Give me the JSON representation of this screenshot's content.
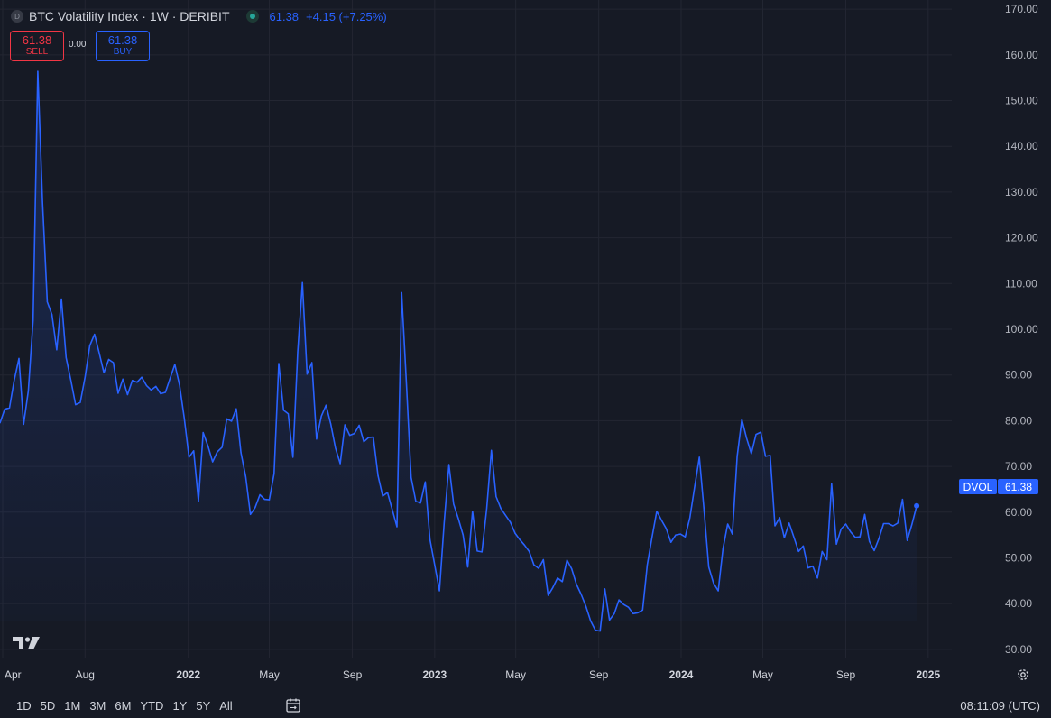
{
  "header": {
    "symbol_icon": "D",
    "title": "BTC Volatility Index · 1W · DERIBIT",
    "status_icon": "market-open-dot-icon",
    "last_value": "61.38",
    "change": "+4.15 (+7.25%)"
  },
  "trade": {
    "sell_value": "61.38",
    "sell_label": "SELL",
    "spread": "0.00",
    "buy_value": "61.38",
    "buy_label": "BUY"
  },
  "price_label": {
    "symbol": "DVOL",
    "value": "61.38"
  },
  "bottombar": {
    "ranges": [
      "1D",
      "5D",
      "1M",
      "3M",
      "6M",
      "YTD",
      "1Y",
      "5Y",
      "All"
    ],
    "calendar_icon": "calendar-range-icon",
    "time": "08:11:09 (UTC)"
  },
  "colors": {
    "bg": "#161a25",
    "line": "#2962ff",
    "grid": "#232632",
    "text": "#d1d4dc",
    "sell": "#f23645"
  },
  "chart_data": {
    "type": "area",
    "title": "BTC Volatility Index · 1W · DERIBIT",
    "xlabel": "",
    "ylabel": "",
    "ylim": [
      28,
      172
    ],
    "yticks": [
      30,
      40,
      50,
      60,
      70,
      80,
      90,
      100,
      110,
      120,
      130,
      140,
      150,
      160,
      170
    ],
    "ytick_labels": [
      "30.00",
      "40.00",
      "50.00",
      "60.00",
      "70.00",
      "80.00",
      "90.00",
      "100.00",
      "110.00",
      "120.00",
      "130.00",
      "140.00",
      "150.00",
      "160.00",
      "170.00"
    ],
    "x_start": "2021-03-28",
    "x_end": "2025-02-05",
    "xticks": [
      {
        "date": "2021-04-01",
        "label": "Apr",
        "bold": false
      },
      {
        "date": "2021-08-01",
        "label": "Aug",
        "bold": false
      },
      {
        "date": "2022-01-01",
        "label": "2022",
        "bold": true
      },
      {
        "date": "2022-05-01",
        "label": "May",
        "bold": false
      },
      {
        "date": "2022-09-01",
        "label": "Sep",
        "bold": false
      },
      {
        "date": "2023-01-01",
        "label": "2023",
        "bold": true
      },
      {
        "date": "2023-05-01",
        "label": "May",
        "bold": false
      },
      {
        "date": "2023-09-01",
        "label": "Sep",
        "bold": false
      },
      {
        "date": "2024-01-01",
        "label": "2024",
        "bold": true
      },
      {
        "date": "2024-05-01",
        "label": "May",
        "bold": false
      },
      {
        "date": "2024-09-01",
        "label": "Sep",
        "bold": false
      },
      {
        "date": "2025-01-01",
        "label": "2025",
        "bold": true
      }
    ],
    "grid": true,
    "series": [
      {
        "name": "DVOL",
        "points": [
          [
            "2021-03-28",
            79.5
          ],
          [
            "2021-04-04",
            82.5
          ],
          [
            "2021-04-11",
            82.8
          ],
          [
            "2021-04-18",
            88.8
          ],
          [
            "2021-04-25",
            93.6
          ],
          [
            "2021-05-02",
            79.2
          ],
          [
            "2021-05-09",
            86.5
          ],
          [
            "2021-05-16",
            102.0
          ],
          [
            "2021-05-23",
            156.4
          ],
          [
            "2021-05-30",
            128.0
          ],
          [
            "2021-06-06",
            106.0
          ],
          [
            "2021-06-13",
            103.2
          ],
          [
            "2021-06-20",
            95.5
          ],
          [
            "2021-06-27",
            106.6
          ],
          [
            "2021-07-04",
            93.8
          ],
          [
            "2021-07-11",
            88.8
          ],
          [
            "2021-07-18",
            83.5
          ],
          [
            "2021-07-25",
            84.0
          ],
          [
            "2021-08-01",
            89.5
          ],
          [
            "2021-08-08",
            96.4
          ],
          [
            "2021-08-15",
            98.9
          ],
          [
            "2021-08-22",
            94.8
          ],
          [
            "2021-08-29",
            90.5
          ],
          [
            "2021-09-05",
            93.4
          ],
          [
            "2021-09-12",
            92.7
          ],
          [
            "2021-09-19",
            86.0
          ],
          [
            "2021-09-26",
            89.1
          ],
          [
            "2021-10-03",
            85.7
          ],
          [
            "2021-10-10",
            88.8
          ],
          [
            "2021-10-17",
            88.4
          ],
          [
            "2021-10-24",
            89.5
          ],
          [
            "2021-10-31",
            87.7
          ],
          [
            "2021-11-07",
            86.7
          ],
          [
            "2021-11-14",
            87.5
          ],
          [
            "2021-11-21",
            85.9
          ],
          [
            "2021-11-28",
            86.2
          ],
          [
            "2021-12-05",
            89.3
          ],
          [
            "2021-12-12",
            92.3
          ],
          [
            "2021-12-19",
            87.8
          ],
          [
            "2021-12-26",
            80.5
          ],
          [
            "2022-01-02",
            72.0
          ],
          [
            "2022-01-09",
            73.4
          ],
          [
            "2022-01-16",
            62.4
          ],
          [
            "2022-01-23",
            77.4
          ],
          [
            "2022-01-30",
            74.5
          ],
          [
            "2022-02-06",
            71.0
          ],
          [
            "2022-02-13",
            73.2
          ],
          [
            "2022-02-20",
            74.2
          ],
          [
            "2022-02-27",
            80.4
          ],
          [
            "2022-03-06",
            79.9
          ],
          [
            "2022-03-13",
            82.6
          ],
          [
            "2022-03-20",
            73.0
          ],
          [
            "2022-03-27",
            67.7
          ],
          [
            "2022-04-03",
            59.5
          ],
          [
            "2022-04-10",
            61.0
          ],
          [
            "2022-04-17",
            63.8
          ],
          [
            "2022-04-24",
            62.8
          ],
          [
            "2022-05-01",
            62.7
          ],
          [
            "2022-05-08",
            68.4
          ],
          [
            "2022-05-15",
            92.5
          ],
          [
            "2022-05-22",
            82.3
          ],
          [
            "2022-05-29",
            81.5
          ],
          [
            "2022-06-05",
            72.0
          ],
          [
            "2022-06-12",
            95.0
          ],
          [
            "2022-06-19",
            110.2
          ],
          [
            "2022-06-26",
            90.2
          ],
          [
            "2022-07-03",
            92.7
          ],
          [
            "2022-07-10",
            76.0
          ],
          [
            "2022-07-17",
            81.0
          ],
          [
            "2022-07-24",
            83.4
          ],
          [
            "2022-07-31",
            79.3
          ],
          [
            "2022-08-07",
            74.0
          ],
          [
            "2022-08-14",
            70.6
          ],
          [
            "2022-08-21",
            79.1
          ],
          [
            "2022-08-28",
            76.8
          ],
          [
            "2022-09-04",
            77.2
          ],
          [
            "2022-09-11",
            79.0
          ],
          [
            "2022-09-18",
            75.4
          ],
          [
            "2022-09-25",
            76.3
          ],
          [
            "2022-10-02",
            76.4
          ],
          [
            "2022-10-09",
            68.0
          ],
          [
            "2022-10-16",
            63.5
          ],
          [
            "2022-10-23",
            64.3
          ],
          [
            "2022-10-30",
            60.6
          ],
          [
            "2022-11-06",
            56.8
          ],
          [
            "2022-11-13",
            108.0
          ],
          [
            "2022-11-20",
            88.5
          ],
          [
            "2022-11-27",
            67.6
          ],
          [
            "2022-12-04",
            62.4
          ],
          [
            "2022-12-11",
            62.0
          ],
          [
            "2022-12-18",
            66.6
          ],
          [
            "2022-12-25",
            54.0
          ],
          [
            "2023-01-01",
            48.4
          ],
          [
            "2023-01-08",
            42.8
          ],
          [
            "2023-01-15",
            57.6
          ],
          [
            "2023-01-22",
            70.4
          ],
          [
            "2023-01-29",
            61.8
          ],
          [
            "2023-02-05",
            58.6
          ],
          [
            "2023-02-12",
            55.0
          ],
          [
            "2023-02-19",
            48.0
          ],
          [
            "2023-02-26",
            60.2
          ],
          [
            "2023-03-05",
            51.5
          ],
          [
            "2023-03-12",
            51.3
          ],
          [
            "2023-03-19",
            60.8
          ],
          [
            "2023-03-26",
            73.5
          ],
          [
            "2023-04-02",
            63.4
          ],
          [
            "2023-04-09",
            60.8
          ],
          [
            "2023-04-16",
            59.3
          ],
          [
            "2023-04-23",
            57.8
          ],
          [
            "2023-04-30",
            55.4
          ],
          [
            "2023-05-07",
            54.0
          ],
          [
            "2023-05-14",
            52.8
          ],
          [
            "2023-05-21",
            51.4
          ],
          [
            "2023-05-28",
            48.5
          ],
          [
            "2023-06-04",
            47.7
          ],
          [
            "2023-06-11",
            49.6
          ],
          [
            "2023-06-18",
            41.8
          ],
          [
            "2023-06-25",
            43.5
          ],
          [
            "2023-07-02",
            45.6
          ],
          [
            "2023-07-09",
            44.8
          ],
          [
            "2023-07-16",
            49.5
          ],
          [
            "2023-07-23",
            47.6
          ],
          [
            "2023-07-30",
            44.2
          ],
          [
            "2023-08-06",
            42.0
          ],
          [
            "2023-08-13",
            39.4
          ],
          [
            "2023-08-20",
            36.2
          ],
          [
            "2023-08-27",
            34.2
          ],
          [
            "2023-09-03",
            34.0
          ],
          [
            "2023-09-10",
            43.2
          ],
          [
            "2023-09-17",
            36.4
          ],
          [
            "2023-09-24",
            37.8
          ],
          [
            "2023-10-01",
            40.8
          ],
          [
            "2023-10-08",
            39.8
          ],
          [
            "2023-10-15",
            39.2
          ],
          [
            "2023-10-22",
            37.8
          ],
          [
            "2023-10-29",
            38.0
          ],
          [
            "2023-11-05",
            38.6
          ],
          [
            "2023-11-12",
            48.5
          ],
          [
            "2023-11-19",
            54.6
          ],
          [
            "2023-11-26",
            60.2
          ],
          [
            "2023-12-03",
            58.2
          ],
          [
            "2023-12-10",
            56.4
          ],
          [
            "2023-12-17",
            53.4
          ],
          [
            "2023-12-24",
            55.0
          ],
          [
            "2023-12-31",
            55.2
          ],
          [
            "2024-01-07",
            54.6
          ],
          [
            "2024-01-14",
            58.8
          ],
          [
            "2024-01-21",
            65.4
          ],
          [
            "2024-01-28",
            72.0
          ],
          [
            "2024-02-04",
            60.5
          ],
          [
            "2024-02-11",
            48.0
          ],
          [
            "2024-02-18",
            44.5
          ],
          [
            "2024-02-25",
            42.8
          ],
          [
            "2024-03-03",
            52.0
          ],
          [
            "2024-03-10",
            57.4
          ],
          [
            "2024-03-17",
            55.2
          ],
          [
            "2024-03-24",
            72.2
          ],
          [
            "2024-03-31",
            80.3
          ],
          [
            "2024-04-07",
            76.2
          ],
          [
            "2024-04-14",
            72.8
          ],
          [
            "2024-04-21",
            77.0
          ],
          [
            "2024-04-28",
            77.5
          ],
          [
            "2024-05-05",
            72.2
          ],
          [
            "2024-05-12",
            72.4
          ],
          [
            "2024-05-19",
            57.0
          ],
          [
            "2024-05-26",
            58.8
          ],
          [
            "2024-06-02",
            54.4
          ],
          [
            "2024-06-09",
            57.6
          ],
          [
            "2024-06-16",
            54.6
          ],
          [
            "2024-06-23",
            51.4
          ],
          [
            "2024-06-30",
            52.6
          ],
          [
            "2024-07-07",
            47.8
          ],
          [
            "2024-07-14",
            48.2
          ],
          [
            "2024-07-21",
            45.6
          ],
          [
            "2024-07-28",
            51.4
          ],
          [
            "2024-08-04",
            49.6
          ],
          [
            "2024-08-11",
            66.2
          ],
          [
            "2024-08-18",
            53.0
          ],
          [
            "2024-08-25",
            56.3
          ],
          [
            "2024-09-01",
            57.4
          ],
          [
            "2024-09-08",
            55.7
          ],
          [
            "2024-09-15",
            54.5
          ],
          [
            "2024-09-22",
            54.6
          ],
          [
            "2024-09-29",
            59.5
          ],
          [
            "2024-10-06",
            53.6
          ],
          [
            "2024-10-13",
            51.6
          ],
          [
            "2024-10-20",
            54.2
          ],
          [
            "2024-10-27",
            57.5
          ],
          [
            "2024-11-03",
            57.5
          ],
          [
            "2024-11-10",
            57.0
          ],
          [
            "2024-11-17",
            57.6
          ],
          [
            "2024-11-24",
            62.8
          ],
          [
            "2024-12-01",
            53.8
          ],
          [
            "2024-12-08",
            57.4
          ],
          [
            "2024-12-15",
            61.38
          ]
        ]
      }
    ]
  }
}
